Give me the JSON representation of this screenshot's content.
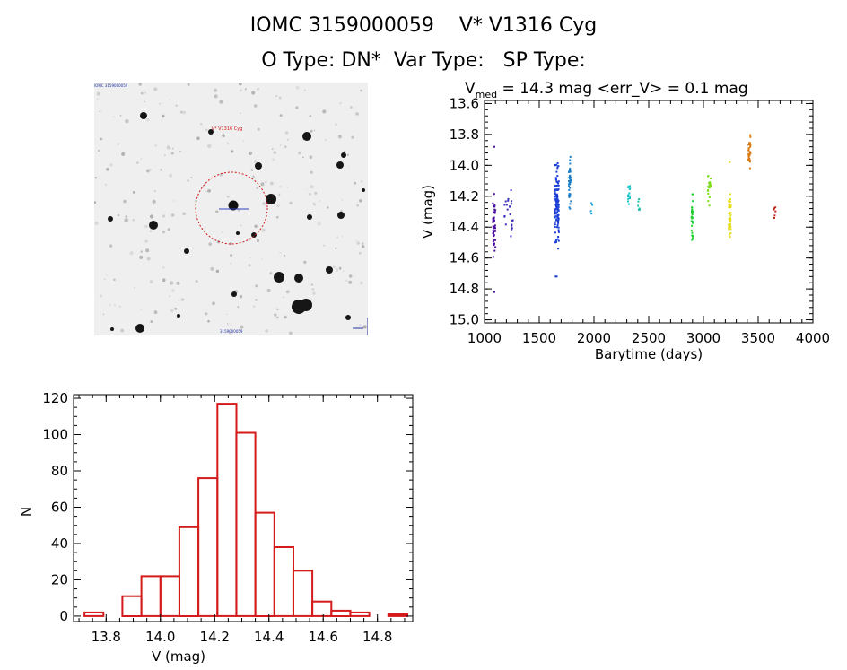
{
  "header": {
    "line1": "IOMC 3159000059    V* V1316 Cyg",
    "line2": "O Type: DN*  Var Type:   SP Type:"
  },
  "finder": {
    "target_label": "V* V1316 Cyg",
    "corner_label_top": "IOMC 3159000059",
    "corner_label_bottom": "3159000059"
  },
  "lightcurve_header": {
    "v_symbol": "V",
    "v_subscript": "med",
    "text": " = 14.3 mag <err_V> = 0.1 mag"
  },
  "chart_data": [
    {
      "type": "scatter",
      "title": "V_med = 14.3 mag <err_V> = 0.1 mag",
      "xlabel": "Barytime (days)",
      "ylabel": "V (mag)",
      "xlim": [
        1000,
        4000
      ],
      "ylim": [
        15.02,
        13.58
      ],
      "y_inverted": true,
      "xticks": [
        1000,
        1500,
        2000,
        2500,
        3000,
        3500,
        4000
      ],
      "yticks": [
        13.6,
        13.8,
        14.0,
        14.2,
        14.4,
        14.6,
        14.8,
        15.0
      ],
      "grid": false,
      "groups": [
        {
          "color": "#4a0f9e",
          "x_range": [
            1075,
            1100
          ],
          "y_min": 14.15,
          "y_max": 14.65,
          "n": 45,
          "outliers": [
            [
              1090,
              13.88
            ],
            [
              1090,
              14.82
            ]
          ]
        },
        {
          "color": "#3a2fb8",
          "x_range": [
            1180,
            1260
          ],
          "y_min": 14.12,
          "y_max": 14.55,
          "n": 22,
          "outliers": []
        },
        {
          "color": "#1c3fd6",
          "x_range": [
            1640,
            1680
          ],
          "y_min": 13.9,
          "y_max": 14.62,
          "n": 110,
          "outliers": [
            [
              1650,
              14.72
            ],
            [
              1660,
              14.72
            ]
          ]
        },
        {
          "color": "#1a7ec8",
          "x_range": [
            1770,
            1790
          ],
          "y_min": 13.88,
          "y_max": 14.33,
          "n": 38,
          "outliers": []
        },
        {
          "color": "#1aa0d8",
          "x_range": [
            1970,
            1985
          ],
          "y_min": 14.22,
          "y_max": 14.33,
          "n": 4,
          "outliers": []
        },
        {
          "color": "#17c6c6",
          "x_range": [
            2310,
            2330
          ],
          "y_min": 14.06,
          "y_max": 14.32,
          "n": 14,
          "outliers": []
        },
        {
          "color": "#17c6a8",
          "x_range": [
            2400,
            2420
          ],
          "y_min": 14.18,
          "y_max": 14.38,
          "n": 8,
          "outliers": []
        },
        {
          "color": "#1ed030",
          "x_range": [
            2890,
            2905
          ],
          "y_min": 14.13,
          "y_max": 14.54,
          "n": 30,
          "outliers": []
        },
        {
          "color": "#7fdc1e",
          "x_range": [
            3040,
            3070
          ],
          "y_min": 14.0,
          "y_max": 14.28,
          "n": 20,
          "outliers": []
        },
        {
          "color": "#e6de14",
          "x_range": [
            3230,
            3250
          ],
          "y_min": 14.1,
          "y_max": 14.55,
          "n": 40,
          "outliers": [
            [
              3240,
              13.98
            ]
          ]
        },
        {
          "color": "#d97a12",
          "x_range": [
            3410,
            3430
          ],
          "y_min": 13.72,
          "y_max": 14.06,
          "n": 28,
          "outliers": []
        },
        {
          "color": "#c42a1a",
          "x_range": [
            3640,
            3660
          ],
          "y_min": 14.24,
          "y_max": 14.38,
          "n": 6,
          "outliers": []
        }
      ]
    },
    {
      "type": "bar",
      "subtype": "histogram",
      "xlabel": "V (mag)",
      "ylabel": "N",
      "xlim": [
        13.68,
        14.93
      ],
      "ylim": [
        -3,
        122
      ],
      "xticks": [
        13.8,
        14.0,
        14.2,
        14.4,
        14.6,
        14.8
      ],
      "yticks": [
        0,
        20,
        40,
        60,
        80,
        100,
        120
      ],
      "bin_width": 0.07,
      "bin_start": 13.72,
      "counts": [
        2,
        0,
        11,
        22,
        22,
        49,
        76,
        117,
        101,
        57,
        38,
        25,
        8,
        3,
        2,
        0,
        1
      ],
      "bar_color": "#d41a1a",
      "grid": false
    }
  ]
}
